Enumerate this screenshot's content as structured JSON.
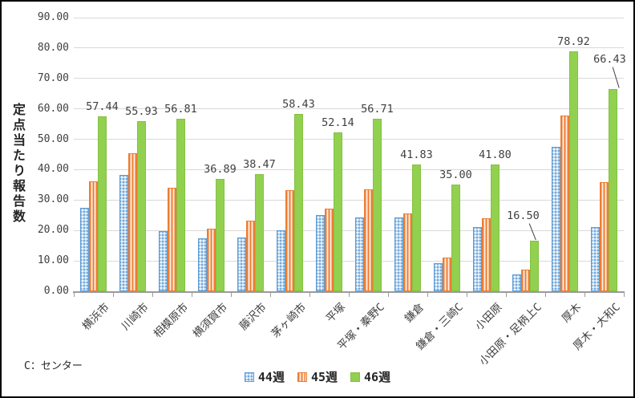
{
  "note": "C：センター",
  "chart_data": {
    "type": "bar",
    "title": "",
    "xlabel": "",
    "ylabel": "定点当たり報告数",
    "ylim": [
      0,
      90
    ],
    "ytick_step": 10,
    "ytick_format": "2-decimals",
    "grid": true,
    "legend_position": "bottom-center",
    "categories": [
      "横浜市",
      "川崎市",
      "相模原市",
      "横須賀市",
      "藤沢市",
      "茅ヶ崎市",
      "平塚",
      "平塚・秦野C",
      "鎌倉",
      "鎌倉・三崎C",
      "小田原",
      "小田原・足柄上C",
      "厚木",
      "厚木・大和C"
    ],
    "series": [
      {
        "name": "44週",
        "style": "blue-dotted-pattern",
        "color": "#5b9bd5",
        "values": [
          27.5,
          38.2,
          19.7,
          17.5,
          17.6,
          20.0,
          25.2,
          24.3,
          24.4,
          9.2,
          21.0,
          5.6,
          47.6,
          21.0
        ],
        "data_labels": false
      },
      {
        "name": "45週",
        "style": "orange-vertical-stripes",
        "color": "#ed7d31",
        "values": [
          36.2,
          45.5,
          34.0,
          20.5,
          23.3,
          33.2,
          27.3,
          33.6,
          25.7,
          11.2,
          24.0,
          7.0,
          57.8,
          36.0
        ],
        "data_labels": false
      },
      {
        "name": "46週",
        "style": "green-solid",
        "color": "#92d050",
        "values": [
          57.44,
          55.93,
          56.81,
          36.89,
          38.47,
          58.43,
          52.14,
          56.71,
          41.83,
          35.0,
          41.8,
          16.5,
          78.92,
          66.43
        ],
        "data_labels": true
      }
    ],
    "callout_label_indices": [
      11,
      13
    ],
    "colors": {
      "gridline": "#d9d9d9",
      "axis": "#9b9b9b",
      "label_text": "#404040"
    }
  }
}
